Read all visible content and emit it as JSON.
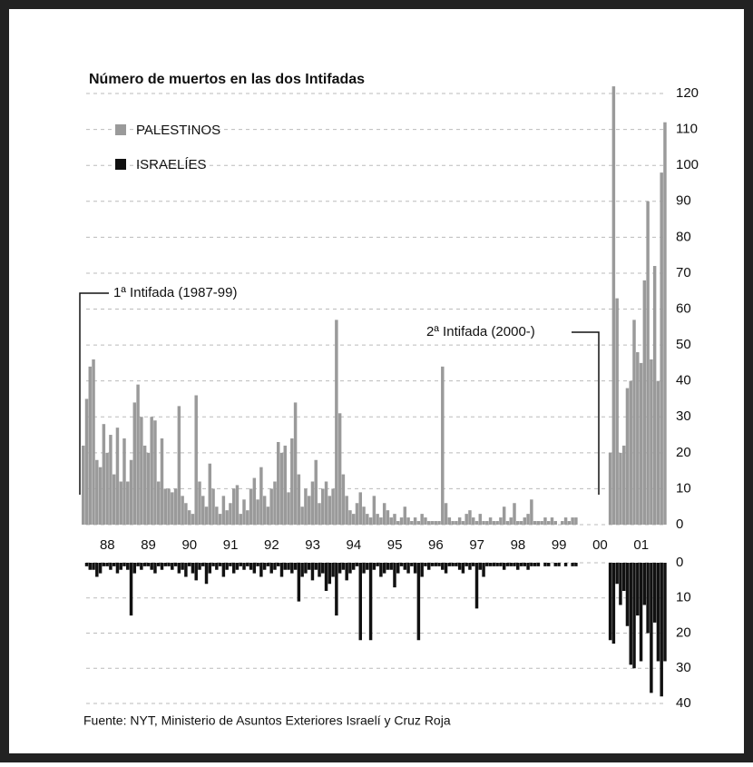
{
  "chart_data": {
    "type": "bar",
    "title": "Número de muertos en las dos Intifadas",
    "annotations": [
      "1ª Intifada (1987-99)",
      "2ª Intifada (2000-)"
    ],
    "source": "Fuente: NYT, Ministerio de Asuntos Exteriores Israelí y Cruz Roja",
    "categories": [
      null,
      null,
      null,
      null,
      null,
      null,
      null,
      "88",
      null,
      null,
      null,
      null,
      null,
      null,
      null,
      null,
      null,
      null,
      null,
      "89",
      null,
      null,
      null,
      null,
      null,
      null,
      null,
      null,
      null,
      null,
      null,
      "90",
      null,
      null,
      null,
      null,
      null,
      null,
      null,
      null,
      null,
      null,
      null,
      "91",
      null,
      null,
      null,
      null,
      null,
      null,
      null,
      null,
      null,
      null,
      null,
      "92",
      null,
      null,
      null,
      null,
      null,
      null,
      null,
      null,
      null,
      null,
      null,
      "93",
      null,
      null,
      null,
      null,
      null,
      null,
      null,
      null,
      null,
      null,
      null,
      "94",
      null,
      null,
      null,
      null,
      null,
      null,
      null,
      null,
      null,
      null,
      null,
      "95",
      null,
      null,
      null,
      null,
      null,
      null,
      null,
      null,
      null,
      null,
      null,
      "96",
      null,
      null,
      null,
      null,
      null,
      null,
      null,
      null,
      null,
      null,
      null,
      "97",
      null,
      null,
      null,
      null,
      null,
      null,
      null,
      null,
      null,
      null,
      null,
      "98",
      null,
      null,
      null,
      null,
      null,
      null,
      null,
      null,
      null,
      null,
      null,
      "99",
      null,
      null,
      null,
      null,
      null,
      null,
      null,
      null,
      null,
      null,
      null,
      "00",
      null,
      null,
      null,
      null,
      null,
      null,
      null,
      null,
      null,
      null,
      null,
      "01",
      null,
      null,
      null,
      null,
      null,
      null,
      null
    ],
    "series": [
      {
        "name": "PALESTINOS",
        "color": "#9a9a9a",
        "values": [
          22,
          35,
          44,
          46,
          18,
          16,
          28,
          20,
          25,
          14,
          27,
          12,
          24,
          12,
          18,
          34,
          39,
          30,
          22,
          20,
          30,
          29,
          12,
          24,
          10,
          10,
          9,
          10,
          33,
          8,
          6,
          4,
          3,
          36,
          12,
          8,
          5,
          17,
          10,
          5,
          3,
          8,
          4,
          6,
          10,
          11,
          3,
          7,
          4,
          10,
          13,
          7,
          16,
          8,
          5,
          10,
          12,
          23,
          20,
          22,
          9,
          24,
          34,
          14,
          5,
          10,
          8,
          12,
          18,
          6,
          10,
          12,
          8,
          10,
          57,
          31,
          14,
          8,
          4,
          3,
          6,
          9,
          5,
          3,
          2,
          8,
          3,
          2,
          6,
          4,
          2,
          3,
          1,
          2,
          5,
          2,
          1,
          2,
          1,
          3,
          2,
          1,
          1,
          1,
          1,
          44,
          6,
          2,
          1,
          1,
          2,
          1,
          3,
          4,
          2,
          1,
          3,
          1,
          1,
          2,
          1,
          1,
          2,
          5,
          1,
          2,
          6,
          1,
          1,
          2,
          3,
          7,
          1,
          1,
          1,
          2,
          1,
          2,
          1,
          0,
          1,
          2,
          1,
          2,
          2,
          null,
          null,
          null,
          null,
          null,
          null,
          null,
          null,
          null,
          20,
          122,
          63,
          20,
          22,
          38,
          40,
          57,
          48,
          45,
          68,
          90,
          46,
          72,
          40,
          98,
          112
        ]
      },
      {
        "name": "ISRAELÍES",
        "color": "#111111",
        "axis": "y2",
        "values": [
          0,
          1,
          2,
          2,
          4,
          3,
          1,
          1,
          2,
          1,
          3,
          2,
          1,
          2,
          15,
          3,
          1,
          2,
          1,
          1,
          2,
          3,
          1,
          2,
          1,
          1,
          2,
          1,
          3,
          2,
          4,
          1,
          3,
          5,
          2,
          1,
          6,
          3,
          1,
          2,
          1,
          4,
          2,
          1,
          3,
          2,
          1,
          2,
          1,
          2,
          3,
          1,
          4,
          2,
          1,
          3,
          2,
          1,
          4,
          2,
          2,
          3,
          2,
          11,
          4,
          3,
          2,
          5,
          2,
          4,
          3,
          8,
          6,
          4,
          15,
          3,
          2,
          5,
          3,
          2,
          1,
          22,
          3,
          2,
          22,
          2,
          1,
          4,
          3,
          2,
          2,
          7,
          3,
          1,
          2,
          3,
          1,
          3,
          22,
          4,
          1,
          2,
          1,
          1,
          1,
          2,
          3,
          1,
          1,
          1,
          2,
          3,
          1,
          2,
          1,
          13,
          2,
          4,
          1,
          1,
          1,
          1,
          1,
          2,
          1,
          1,
          1,
          2,
          1,
          1,
          2,
          1,
          1,
          1,
          0,
          1,
          1,
          0,
          1,
          1,
          0,
          1,
          0,
          1,
          1,
          null,
          null,
          null,
          null,
          null,
          null,
          null,
          null,
          null,
          22,
          23,
          6,
          12,
          8,
          18,
          29,
          30,
          15,
          28,
          12,
          20,
          37,
          17,
          28,
          38,
          28
        ]
      }
    ],
    "ylim": [
      0,
      122
    ],
    "yticks": [
      0,
      10,
      20,
      30,
      40,
      50,
      60,
      70,
      80,
      90,
      100,
      110,
      120
    ],
    "y2lim": [
      0,
      40
    ],
    "y2ticks": [
      0,
      10,
      20,
      30,
      40
    ],
    "grid": true,
    "legend": "top-left"
  }
}
